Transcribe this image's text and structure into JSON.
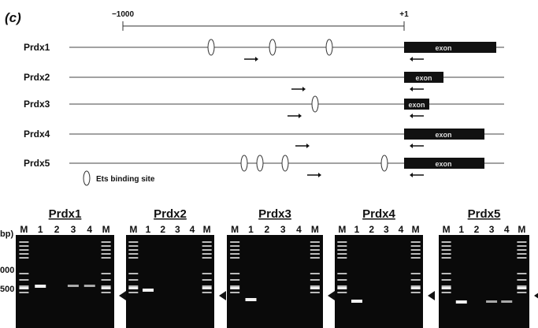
{
  "panel_label": "(c)",
  "scale": {
    "left": "−1000",
    "right": "+1"
  },
  "genes": [
    {
      "name": "Prdx1",
      "exon": "exon"
    },
    {
      "name": "Prdx2",
      "exon": "exon"
    },
    {
      "name": "Prdx3",
      "exon": "exon"
    },
    {
      "name": "Prdx4",
      "exon": "exon"
    },
    {
      "name": "Prdx5",
      "exon": "exon"
    }
  ],
  "legend": "Ets binding site",
  "size_axis": {
    "unit": "bp)",
    "ticks": [
      "000",
      "500"
    ]
  },
  "gels": [
    {
      "title": "Prdx1",
      "lanes": [
        "M",
        "1",
        "2",
        "3",
        "4",
        "M"
      ]
    },
    {
      "title": "Prdx2",
      "lanes": [
        "M",
        "1",
        "2",
        "3",
        "4",
        "M"
      ]
    },
    {
      "title": "Prdx3",
      "lanes": [
        "M",
        "1",
        "2",
        "3",
        "4",
        "M"
      ]
    },
    {
      "title": "Prdx4",
      "lanes": [
        "M",
        "1",
        "2",
        "3",
        "4",
        "M"
      ]
    },
    {
      "title": "Prdx5",
      "lanes": [
        "M",
        "1",
        "2",
        "3",
        "4",
        "M"
      ]
    }
  ]
}
